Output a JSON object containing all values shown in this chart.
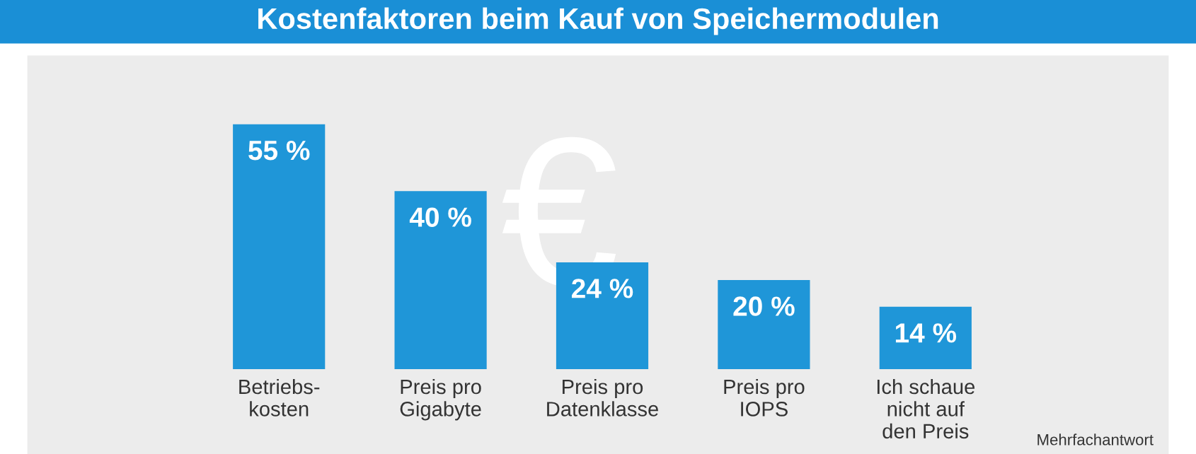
{
  "chart_data": {
    "type": "bar",
    "title": "Kostenfaktoren beim Kauf von Speichermodulen",
    "categories": [
      "Betriebs-\nkosten",
      "Preis pro\nGigabyte",
      "Preis pro\nDatenklasse",
      "Preis pro\nIOPS",
      "Ich schaue\nnicht auf\nden Preis"
    ],
    "values": [
      55,
      40,
      24,
      20,
      14
    ],
    "value_labels": [
      "55 %",
      "40 %",
      "24 %",
      "20 %",
      "14 %"
    ],
    "color": "#1f96d8",
    "tick_labels": "x",
    "grid": false,
    "legend": false,
    "annotations": [
      "Mehrfachantwort"
    ]
  }
}
